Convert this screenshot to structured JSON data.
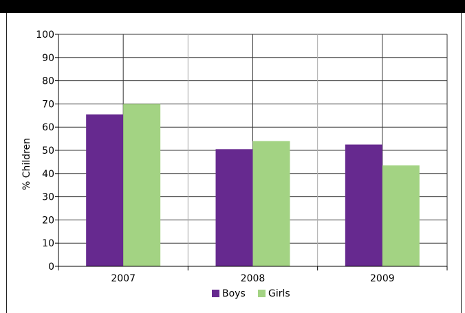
{
  "chart_data": {
    "type": "bar",
    "categories": [
      "2007",
      "2008",
      "2009"
    ],
    "series": [
      {
        "name": "Boys",
        "values": [
          65.5,
          50.5,
          52.5
        ],
        "color": "#66298f"
      },
      {
        "name": "Girls",
        "values": [
          70,
          54,
          43.5
        ],
        "color": "#a3d383"
      }
    ],
    "ylabel": "% Children",
    "ylim": [
      0,
      100
    ],
    "yticks": [
      "0",
      "10",
      "20",
      "30",
      "40",
      "50",
      "60",
      "70",
      "80",
      "90",
      "100"
    ],
    "grid": true,
    "legend": "bottom-center"
  }
}
